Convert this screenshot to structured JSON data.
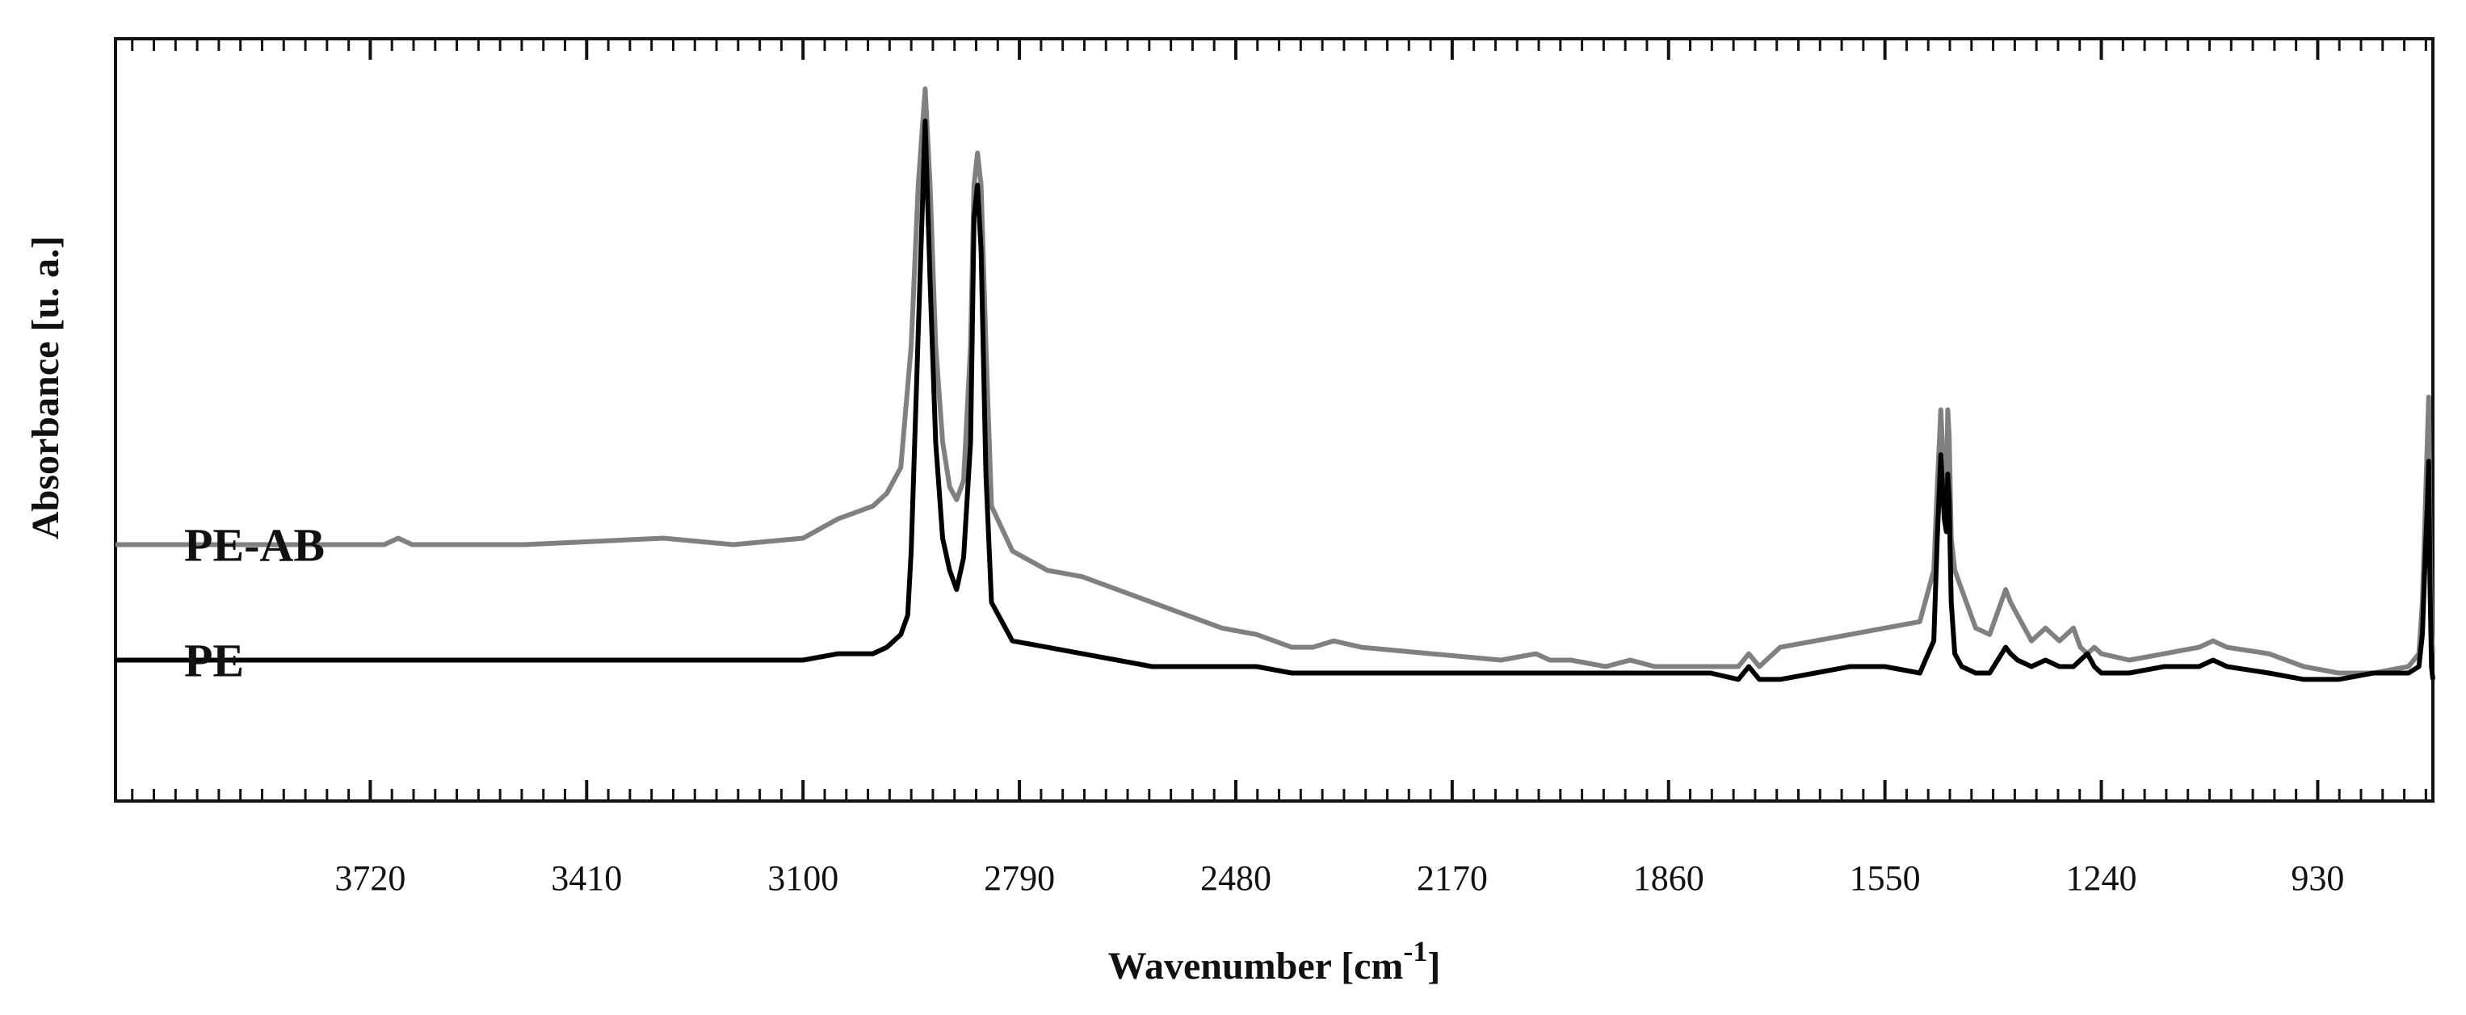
{
  "chart_data": {
    "type": "line",
    "title": "",
    "xlabel": "Wavenumber [cm",
    "xlabel_sup": "-1",
    "xlabel_close": "]",
    "ylabel": "Absorbance [u. a.]",
    "x_reversed": true,
    "xlim": [
      4085,
      765
    ],
    "ylim": [
      0,
      1
    ],
    "y_ticks_shown": false,
    "grid": false,
    "x_ticks": [
      3720,
      3410,
      3100,
      2790,
      2480,
      2170,
      1860,
      1550,
      1240,
      930
    ],
    "series": [
      {
        "name": "PE-AB",
        "color": "#808080",
        "x": [
          4085,
          3900,
          3720,
          3700,
          3680,
          3660,
          3500,
          3300,
          3200,
          3100,
          3050,
          3000,
          2980,
          2960,
          2945,
          2935,
          2925,
          2918,
          2910,
          2900,
          2890,
          2880,
          2870,
          2860,
          2855,
          2850,
          2845,
          2838,
          2830,
          2800,
          2750,
          2700,
          2650,
          2600,
          2550,
          2500,
          2450,
          2400,
          2370,
          2340,
          2300,
          2200,
          2100,
          2050,
          2030,
          2000,
          1950,
          1915,
          1880,
          1800,
          1760,
          1745,
          1730,
          1700,
          1650,
          1600,
          1550,
          1500,
          1480,
          1475,
          1470,
          1465,
          1462,
          1460,
          1458,
          1455,
          1450,
          1440,
          1420,
          1400,
          1377,
          1370,
          1360,
          1340,
          1320,
          1300,
          1280,
          1270,
          1260,
          1250,
          1240,
          1200,
          1150,
          1100,
          1080,
          1060,
          1000,
          950,
          900,
          850,
          800,
          785,
          780,
          775,
          773,
          771,
          769,
          767,
          765
        ],
        "y": [
          0.29,
          0.29,
          0.29,
          0.29,
          0.3,
          0.29,
          0.29,
          0.3,
          0.29,
          0.3,
          0.33,
          0.35,
          0.37,
          0.41,
          0.6,
          0.85,
          1.0,
          0.85,
          0.6,
          0.45,
          0.38,
          0.36,
          0.39,
          0.6,
          0.85,
          0.9,
          0.85,
          0.6,
          0.35,
          0.28,
          0.25,
          0.24,
          0.22,
          0.2,
          0.18,
          0.16,
          0.15,
          0.13,
          0.13,
          0.14,
          0.13,
          0.12,
          0.11,
          0.12,
          0.11,
          0.11,
          0.1,
          0.11,
          0.1,
          0.1,
          0.1,
          0.12,
          0.1,
          0.13,
          0.14,
          0.15,
          0.16,
          0.17,
          0.25,
          0.38,
          0.5,
          0.38,
          0.36,
          0.5,
          0.46,
          0.3,
          0.25,
          0.22,
          0.16,
          0.15,
          0.22,
          0.2,
          0.18,
          0.14,
          0.16,
          0.14,
          0.16,
          0.13,
          0.12,
          0.13,
          0.12,
          0.11,
          0.12,
          0.13,
          0.14,
          0.13,
          0.12,
          0.1,
          0.09,
          0.09,
          0.1,
          0.12,
          0.2,
          0.38,
          0.45,
          0.52,
          0.3,
          0.15,
          0.12
        ]
      },
      {
        "name": "PE",
        "color": "#000000",
        "x": [
          4085,
          3900,
          3720,
          3500,
          3300,
          3200,
          3100,
          3050,
          3000,
          2980,
          2960,
          2950,
          2945,
          2935,
          2925,
          2918,
          2910,
          2900,
          2890,
          2880,
          2870,
          2860,
          2855,
          2850,
          2845,
          2838,
          2830,
          2800,
          2750,
          2700,
          2650,
          2600,
          2550,
          2500,
          2450,
          2400,
          2350,
          2300,
          2200,
          2100,
          2050,
          2000,
          1950,
          1900,
          1850,
          1800,
          1760,
          1745,
          1730,
          1700,
          1650,
          1600,
          1550,
          1500,
          1480,
          1475,
          1470,
          1465,
          1462,
          1460,
          1458,
          1455,
          1450,
          1440,
          1420,
          1400,
          1377,
          1370,
          1360,
          1340,
          1320,
          1300,
          1280,
          1270,
          1260,
          1250,
          1240,
          1200,
          1150,
          1100,
          1080,
          1060,
          1000,
          950,
          900,
          850,
          800,
          785,
          780,
          775,
          773,
          771,
          769,
          767,
          765
        ],
        "y": [
          0.11,
          0.11,
          0.11,
          0.11,
          0.11,
          0.11,
          0.11,
          0.12,
          0.12,
          0.13,
          0.15,
          0.18,
          0.28,
          0.62,
          0.95,
          0.7,
          0.45,
          0.3,
          0.25,
          0.22,
          0.27,
          0.45,
          0.8,
          0.85,
          0.75,
          0.4,
          0.2,
          0.14,
          0.13,
          0.12,
          0.11,
          0.1,
          0.1,
          0.1,
          0.1,
          0.09,
          0.09,
          0.09,
          0.09,
          0.09,
          0.09,
          0.09,
          0.09,
          0.09,
          0.09,
          0.09,
          0.08,
          0.1,
          0.08,
          0.08,
          0.09,
          0.1,
          0.1,
          0.09,
          0.14,
          0.3,
          0.43,
          0.33,
          0.31,
          0.4,
          0.36,
          0.2,
          0.12,
          0.1,
          0.09,
          0.09,
          0.13,
          0.12,
          0.11,
          0.1,
          0.11,
          0.1,
          0.1,
          0.11,
          0.12,
          0.1,
          0.09,
          0.09,
          0.1,
          0.1,
          0.11,
          0.1,
          0.09,
          0.08,
          0.08,
          0.09,
          0.09,
          0.1,
          0.15,
          0.3,
          0.35,
          0.42,
          0.22,
          0.1,
          0.08
        ]
      }
    ]
  }
}
